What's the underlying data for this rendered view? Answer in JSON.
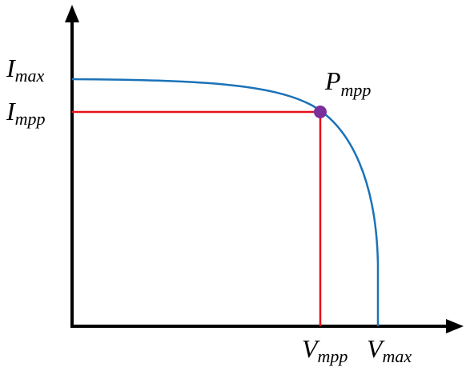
{
  "labels": {
    "i_max": {
      "main": "I",
      "sub": "max"
    },
    "i_mpp": {
      "main": "I",
      "sub": "mpp"
    },
    "p_mpp": {
      "main": "P",
      "sub": "mpp"
    },
    "v_mpp": {
      "main": "V",
      "sub": "mpp"
    },
    "v_max": {
      "main": "V",
      "sub": "max"
    }
  }
}
